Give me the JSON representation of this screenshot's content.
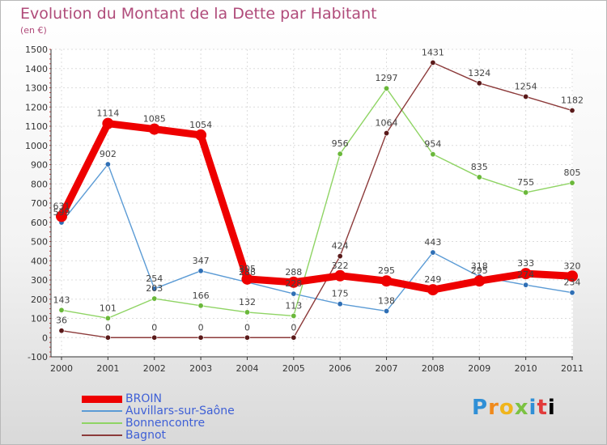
{
  "title": "Evolution du Montant de la Dette par Habitant",
  "subtitle": "(en €)",
  "logo": "Proxiti",
  "chart_data": {
    "type": "line",
    "title": "Evolution du Montant de la Dette par Habitant",
    "subtitle": "(en €)",
    "x": [
      "2000",
      "2001",
      "2002",
      "2003",
      "2004",
      "2005",
      "2006",
      "2007",
      "2008",
      "2009",
      "2010",
      "2011"
    ],
    "ylim": [
      -100,
      1500
    ],
    "yticks": [
      -100,
      0,
      100,
      200,
      300,
      400,
      500,
      600,
      700,
      800,
      900,
      1000,
      1100,
      1200,
      1300,
      1400,
      1500
    ],
    "grid": true,
    "legend_position": "bottom-left",
    "series": [
      {
        "name": "Auvillars-sur-Saône",
        "color": "#5b9bd5",
        "marker": "#2f6fb5",
        "values": [
          599,
          902,
          254,
          347,
          288,
          228,
          175,
          138,
          443,
          318,
          274,
          234
        ],
        "labels": [
          "599",
          "902",
          "254",
          "347",
          "288",
          "228",
          "175",
          "138",
          "443",
          "318",
          "274",
          "234"
        ]
      },
      {
        "name": "Bonnencontre",
        "color": "#8fd464",
        "marker": "#6ab83a",
        "values": [
          143,
          101,
          203,
          166,
          132,
          113,
          956,
          1297,
          954,
          835,
          755,
          805
        ],
        "labels": [
          "143",
          "101",
          "203",
          "166",
          "132",
          "113",
          "956",
          "1297",
          "954",
          "835",
          "755",
          "805"
        ]
      },
      {
        "name": "Bagnot",
        "color": "#8c3a3a",
        "marker": "#5a1a1a",
        "values": [
          36,
          0,
          0,
          0,
          0,
          0,
          424,
          1064,
          1431,
          1324,
          1254,
          1182
        ],
        "labels": [
          "36",
          "0",
          "0",
          "0",
          "0",
          "0",
          "424",
          "1064",
          "1431",
          "1324",
          "1254",
          "1182"
        ]
      },
      {
        "name": "BROIN",
        "color": "#ee0000",
        "marker": "#ee0000",
        "values": [
          631,
          1114,
          1085,
          1054,
          305,
          288,
          322,
          295,
          249,
          295,
          333,
          320
        ],
        "labels": [
          "631",
          "1114",
          "1085",
          "1054",
          "305",
          "288",
          "322",
          "295",
          "249",
          "295",
          "333",
          "320"
        ]
      }
    ],
    "legend": [
      {
        "name": "BROIN",
        "color": "#ee0000"
      },
      {
        "name": "Auvillars-sur-Saône",
        "color": "#5b9bd5"
      },
      {
        "name": "Bonnencontre",
        "color": "#8fd464"
      },
      {
        "name": "Bagnot",
        "color": "#8c3a3a"
      }
    ]
  }
}
